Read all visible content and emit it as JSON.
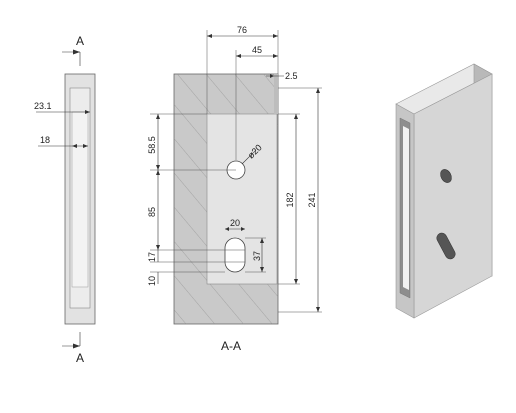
{
  "section_marks": {
    "top": "A",
    "bottom": "A",
    "section_label": "A-A"
  },
  "dimensions": {
    "overall_width": "76",
    "hole_offset": "45",
    "rim": "2.5",
    "hole_diameter": "ø20",
    "hole_from_top": "58.5",
    "hole_to_slot": "85",
    "slot_offset": "17",
    "slot_bottom": "10",
    "slot_width": "20",
    "slot_height": "37",
    "pocket_height": "182",
    "overall_height": "241",
    "side_depth": "23.1",
    "side_inner": "18"
  },
  "colors": {
    "section_fill": "#c9c9c9",
    "pocket_fill": "#e4e4e4",
    "hatch": "#8a8a8a",
    "iso_front": "#d6d6d6",
    "iso_top": "#e9e9e9",
    "iso_side": "#b9b9b9"
  }
}
